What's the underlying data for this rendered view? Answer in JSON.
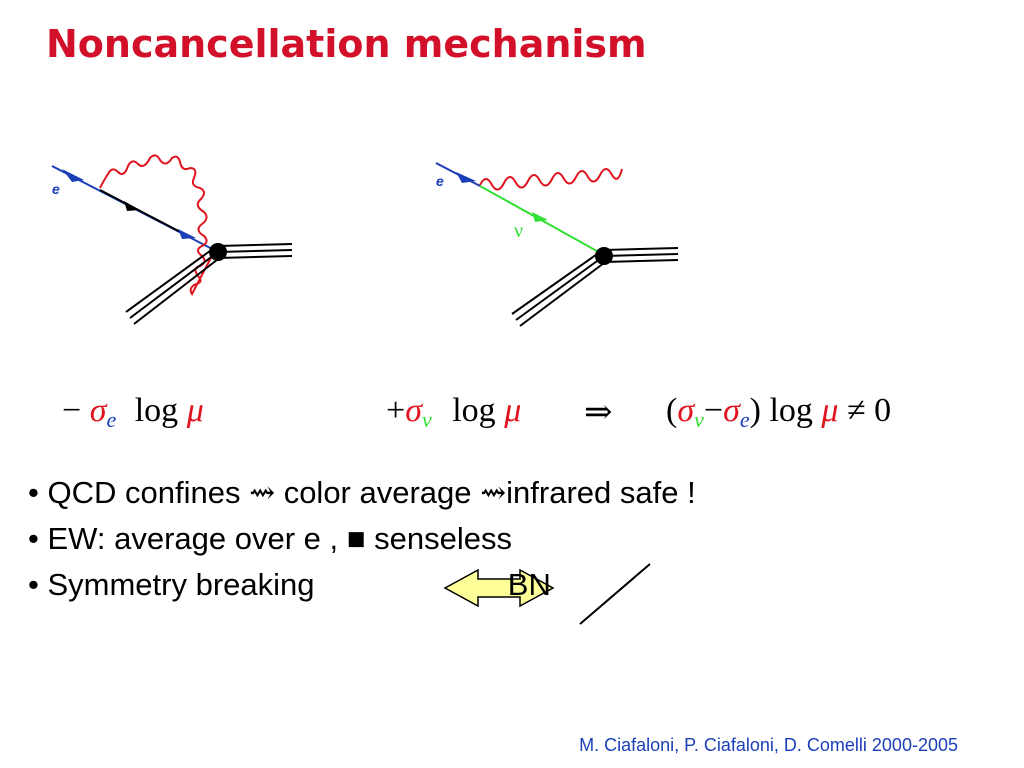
{
  "slide": {
    "title": "Noncancellation mechanism",
    "credit": "M. Ciafaloni, P. Ciafaloni, D. Comelli 2000-2005"
  },
  "diagrams": {
    "left_label_e": "e",
    "right_label_e": "e",
    "right_label_nu": "ν"
  },
  "equations": {
    "left": {
      "sign": "−",
      "sigma": "σ",
      "sub": "e",
      "log": "log",
      "mu": "μ"
    },
    "middle": {
      "sign": "+",
      "sigma": "σ",
      "sub": "ν",
      "log": "log",
      "mu": "μ"
    },
    "implies": "⇒",
    "right": {
      "open": "(",
      "sigma1": "σ",
      "sub1": "ν",
      "minus": "−",
      "sigma2": "σ",
      "sub2": "e",
      "close": ")",
      "log": "log",
      "mu": "μ",
      "neq": "≠",
      "zero": "0"
    }
  },
  "bullets": [
    {
      "bullet": "•",
      "text": "QCD confines",
      "arrow": "⇝",
      "text2": "color average",
      "arrow2": "⇝",
      "text3": "infrared safe !"
    },
    {
      "bullet": "•",
      "text": "EW:  average over e ,",
      "square": "■",
      "text2": "senseless"
    },
    {
      "bullet": "•",
      "text": "Symmetry breaking",
      "struck": "BN"
    }
  ],
  "colors": {
    "title": "#d2102a",
    "photon": "#e0141e",
    "electron": "#1b3fb8",
    "neutrino": "#33e033",
    "credit": "#1b3fb8",
    "arrow_fill": "#ffff99"
  }
}
